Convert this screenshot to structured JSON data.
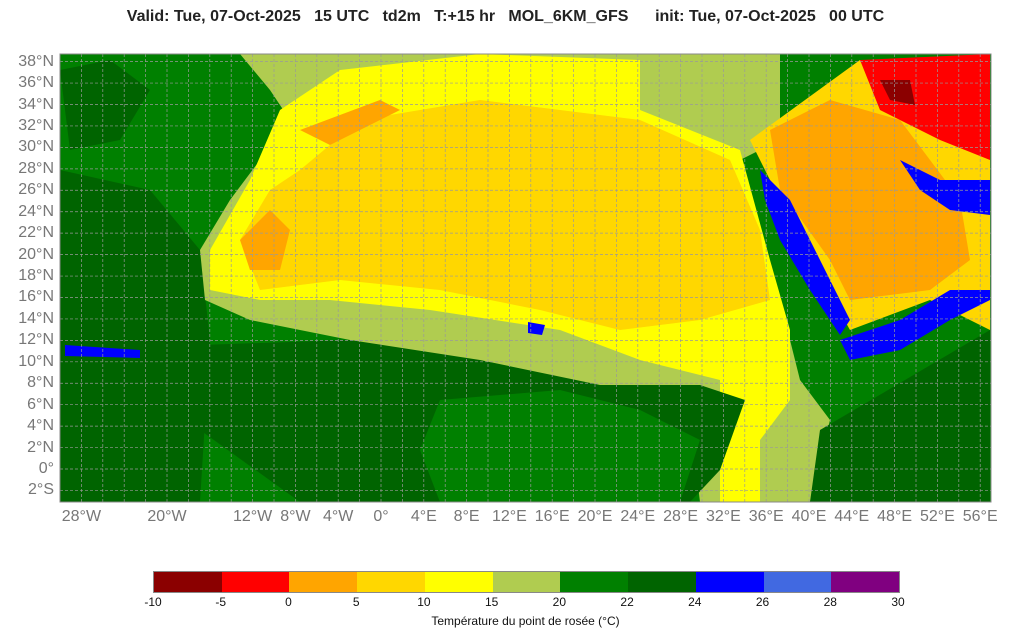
{
  "title": "Valid: Tue, 07-Oct-2025   15 UTC   td2m   T:+15 hr   MOL_6KM_GFS      init: Tue, 07-Oct-2025   00 UTC",
  "lat_labels": [
    {
      "lat": 38,
      "text": "38°N"
    },
    {
      "lat": 36,
      "text": "36°N"
    },
    {
      "lat": 34,
      "text": "34°N"
    },
    {
      "lat": 32,
      "text": "32°N"
    },
    {
      "lat": 30,
      "text": "30°N"
    },
    {
      "lat": 28,
      "text": "28°N"
    },
    {
      "lat": 26,
      "text": "26°N"
    },
    {
      "lat": 24,
      "text": "24°N"
    },
    {
      "lat": 22,
      "text": "22°N"
    },
    {
      "lat": 20,
      "text": "20°N"
    },
    {
      "lat": 18,
      "text": "18°N"
    },
    {
      "lat": 16,
      "text": "16°N"
    },
    {
      "lat": 14,
      "text": "14°N"
    },
    {
      "lat": 12,
      "text": "12°N"
    },
    {
      "lat": 10,
      "text": "10°N"
    },
    {
      "lat": 8,
      "text": "8°N"
    },
    {
      "lat": 6,
      "text": "6°N"
    },
    {
      "lat": 4,
      "text": "4°N"
    },
    {
      "lat": 2,
      "text": "2°N"
    },
    {
      "lat": 0,
      "text": "0°"
    },
    {
      "lat": -2,
      "text": "2°S"
    }
  ],
  "lon_labels": [
    {
      "lon": -28,
      "text": "28°W"
    },
    {
      "lon": -20,
      "text": "20°W"
    },
    {
      "lon": -12,
      "text": "12°W"
    },
    {
      "lon": -8,
      "text": "8°W"
    },
    {
      "lon": -4,
      "text": "4°W"
    },
    {
      "lon": 0,
      "text": "0°"
    },
    {
      "lon": 4,
      "text": "4°E"
    },
    {
      "lon": 8,
      "text": "8°E"
    },
    {
      "lon": 12,
      "text": "12°E"
    },
    {
      "lon": 16,
      "text": "16°E"
    },
    {
      "lon": 20,
      "text": "20°E"
    },
    {
      "lon": 24,
      "text": "24°E"
    },
    {
      "lon": 28,
      "text": "28°E"
    },
    {
      "lon": 32,
      "text": "32°E"
    },
    {
      "lon": 36,
      "text": "36°E"
    },
    {
      "lon": 40,
      "text": "40°E"
    },
    {
      "lon": 44,
      "text": "44°E"
    },
    {
      "lon": 48,
      "text": "48°E"
    },
    {
      "lon": 52,
      "text": "52°E"
    },
    {
      "lon": 56,
      "text": "56°E"
    }
  ],
  "colorbar": {
    "label": "Température du point de rosée (°C)",
    "ticks": [
      "-10",
      "-5",
      "0",
      "5",
      "10",
      "15",
      "20",
      "22",
      "24",
      "26",
      "28",
      "30"
    ],
    "colors": [
      "#8b0000",
      "#ff0000",
      "#ffa500",
      "#ffd700",
      "#ffff00",
      "#b0cc50",
      "#008000",
      "#006400",
      "#0000ff",
      "#4169e1",
      "#800080"
    ]
  },
  "colors": {
    "ocean": "#008000",
    "dark_green": "#006400",
    "olive": "#b0cc50",
    "yellow": "#ffff00",
    "gold": "#ffd700",
    "orange": "#ffa500",
    "red": "#ff0000",
    "dark_red": "#8b0000",
    "blue": "#0000ff",
    "royal_blue": "#4169e1"
  }
}
